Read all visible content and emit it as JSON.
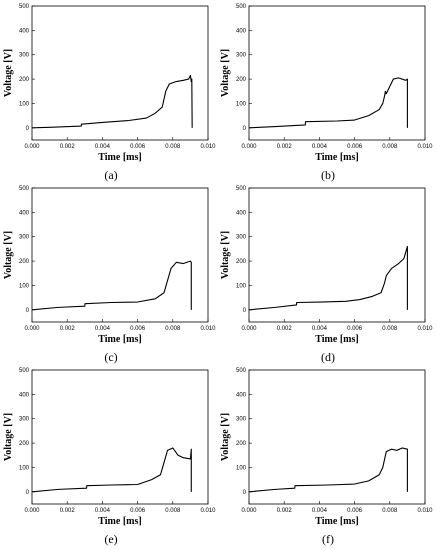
{
  "chart_data": [
    {
      "type": "line",
      "panel_label": "(a)",
      "xlabel": "Time [ms]",
      "ylabel": "Voltage [V]",
      "xlim": [
        0,
        0.01
      ],
      "ylim": [
        -50,
        500
      ],
      "xticks": [
        "0.000",
        "0.002",
        "0.004",
        "0.006",
        "0.008",
        "0.010"
      ],
      "yticks": [
        "0",
        "100",
        "200",
        "300",
        "400",
        "500"
      ],
      "series": [
        {
          "x": [
            0.0,
            0.001,
            0.0028,
            0.00281,
            0.004,
            0.0055,
            0.0065,
            0.007,
            0.0074,
            0.0076,
            0.0078,
            0.0082,
            0.0086,
            0.0089,
            0.009,
            0.00905,
            0.00908,
            0.0091,
            0.0091
          ],
          "y": [
            0,
            2,
            7,
            15,
            22,
            30,
            40,
            60,
            85,
            150,
            180,
            190,
            195,
            200,
            215,
            190,
            200,
            5,
            0
          ]
        }
      ]
    },
    {
      "type": "line",
      "panel_label": "(b)",
      "xlabel": "Time [ms]",
      "ylabel": "Voltage [V]",
      "xlim": [
        0,
        0.01
      ],
      "ylim": [
        -50,
        500
      ],
      "xticks": [
        "0.000",
        "0.002",
        "0.004",
        "0.006",
        "0.008",
        "0.010"
      ],
      "yticks": [
        "0",
        "100",
        "200",
        "300",
        "400",
        "500"
      ],
      "series": [
        {
          "x": [
            0.0,
            0.0015,
            0.0032,
            0.00321,
            0.005,
            0.006,
            0.0068,
            0.0074,
            0.0076,
            0.0077,
            0.00775,
            0.0078,
            0.008,
            0.0082,
            0.0085,
            0.0089,
            0.009,
            0.009
          ],
          "y": [
            0,
            5,
            12,
            25,
            28,
            32,
            50,
            75,
            100,
            130,
            150,
            140,
            170,
            200,
            205,
            195,
            200,
            0
          ]
        }
      ]
    },
    {
      "type": "line",
      "panel_label": "(c)",
      "xlabel": "Time [ms]",
      "ylabel": "Voltage [V]",
      "xlim": [
        0,
        0.01
      ],
      "ylim": [
        -50,
        500
      ],
      "xticks": [
        "0.000",
        "0.002",
        "0.004",
        "0.006",
        "0.008",
        "0.010"
      ],
      "yticks": [
        "0",
        "100",
        "200",
        "300",
        "400",
        "500"
      ],
      "series": [
        {
          "x": [
            0.0,
            0.0015,
            0.003,
            0.00301,
            0.0045,
            0.006,
            0.007,
            0.0075,
            0.0077,
            0.0079,
            0.0082,
            0.0086,
            0.009,
            0.00905,
            0.00905
          ],
          "y": [
            0,
            10,
            15,
            25,
            30,
            32,
            45,
            70,
            120,
            170,
            195,
            190,
            200,
            195,
            0
          ]
        }
      ]
    },
    {
      "type": "line",
      "panel_label": "(d)",
      "xlabel": "Time [ms]",
      "ylabel": "Voltage [V]",
      "xlim": [
        0,
        0.01
      ],
      "ylim": [
        -50,
        500
      ],
      "xticks": [
        "0.000",
        "0.002",
        "0.004",
        "0.006",
        "0.008",
        "0.010"
      ],
      "yticks": [
        "0",
        "100",
        "200",
        "300",
        "400",
        "500"
      ],
      "series": [
        {
          "x": [
            0.0,
            0.0015,
            0.0027,
            0.00271,
            0.004,
            0.0055,
            0.0063,
            0.007,
            0.0075,
            0.0077,
            0.0078,
            0.0081,
            0.0085,
            0.0088,
            0.009,
            0.009
          ],
          "y": [
            0,
            10,
            20,
            30,
            32,
            35,
            42,
            55,
            70,
            110,
            140,
            170,
            190,
            210,
            260,
            0
          ]
        }
      ]
    },
    {
      "type": "line",
      "panel_label": "(e)",
      "xlabel": "Time [ms]",
      "ylabel": "Voltage [V]",
      "xlim": [
        0,
        0.01
      ],
      "ylim": [
        -50,
        500
      ],
      "xticks": [
        "0.000",
        "0.002",
        "0.004",
        "0.006",
        "0.008",
        "0.010"
      ],
      "yticks": [
        "0",
        "100",
        "200",
        "300",
        "400",
        "500"
      ],
      "series": [
        {
          "x": [
            0.0,
            0.0015,
            0.0031,
            0.00311,
            0.0045,
            0.006,
            0.0068,
            0.0073,
            0.0075,
            0.0077,
            0.008,
            0.0083,
            0.0086,
            0.009,
            0.00905,
            0.00905
          ],
          "y": [
            0,
            10,
            15,
            25,
            28,
            30,
            50,
            70,
            120,
            170,
            180,
            150,
            140,
            135,
            175,
            0
          ]
        }
      ]
    },
    {
      "type": "line",
      "panel_label": "(f)",
      "xlabel": "Time [ms]",
      "ylabel": "Voltage [V]",
      "xlim": [
        0,
        0.01
      ],
      "ylim": [
        -50,
        500
      ],
      "xticks": [
        "0.000",
        "0.002",
        "0.004",
        "0.006",
        "0.008",
        "0.010"
      ],
      "yticks": [
        "0",
        "100",
        "200",
        "300",
        "400",
        "500"
      ],
      "series": [
        {
          "x": [
            0.0,
            0.0015,
            0.0026,
            0.00261,
            0.0045,
            0.006,
            0.0068,
            0.0074,
            0.0076,
            0.0078,
            0.0081,
            0.0084,
            0.0087,
            0.009,
            0.009
          ],
          "y": [
            0,
            10,
            15,
            25,
            28,
            32,
            45,
            70,
            100,
            165,
            175,
            170,
            180,
            175,
            0
          ]
        }
      ]
    }
  ]
}
